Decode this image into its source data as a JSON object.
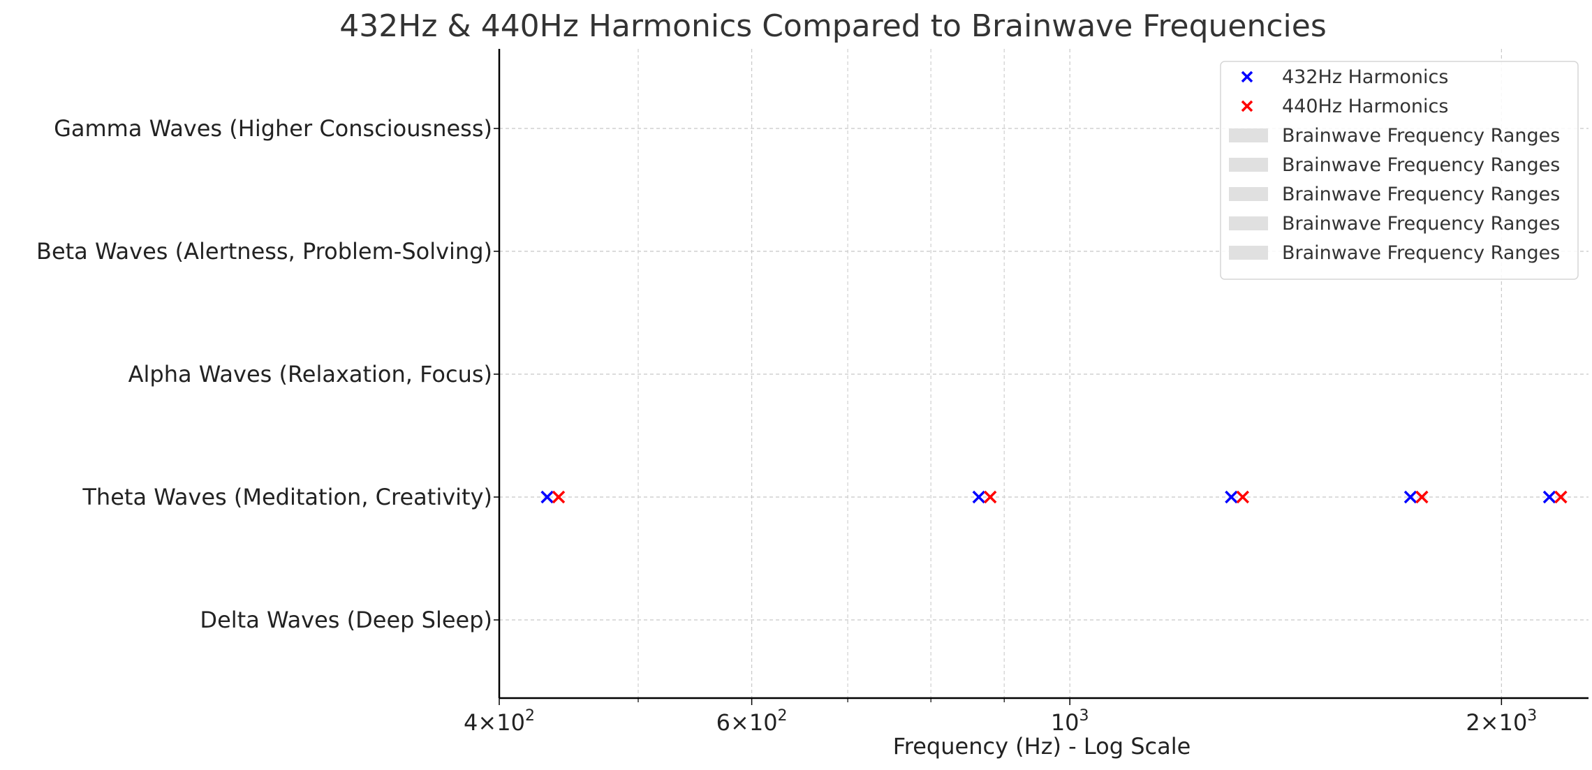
{
  "chart_data": {
    "type": "scatter",
    "title": "432Hz & 440Hz Harmonics Compared to Brainwave Frequencies",
    "xlabel": "Frequency (Hz) - Log Scale",
    "ylabel": "",
    "x_scale": "log",
    "xlim": [
      400,
      2300
    ],
    "x_ticks": [
      {
        "value": 400,
        "base": "4",
        "exp": "2"
      },
      {
        "value": 600,
        "base": "6",
        "exp": "2"
      },
      {
        "value": 1000,
        "base": "",
        "exp": "3"
      },
      {
        "value": 2000,
        "base": "2",
        "exp": "3"
      }
    ],
    "x_tick_mult": "×",
    "x_tick_ten": "10",
    "minor_ticks": [
      500,
      700,
      800,
      900
    ],
    "categories": [
      "Delta Waves (Deep Sleep)",
      "Theta Waves (Meditation, Creativity)",
      "Alpha Waves (Relaxation, Focus)",
      "Beta Waves (Alertness, Problem-Solving)",
      "Gamma Waves (Higher Consciousness)"
    ],
    "series": [
      {
        "name": "432Hz Harmonics",
        "marker": "x",
        "color": "#0000ff",
        "x": [
          432,
          864,
          1296,
          1728,
          2160
        ],
        "y": [
          "Theta Waves (Meditation, Creativity)",
          "Theta Waves (Meditation, Creativity)",
          "Theta Waves (Meditation, Creativity)",
          "Theta Waves (Meditation, Creativity)",
          "Theta Waves (Meditation, Creativity)"
        ]
      },
      {
        "name": "440Hz Harmonics",
        "marker": "x",
        "color": "#ff0000",
        "x": [
          440,
          880,
          1320,
          1760,
          2200
        ],
        "y": [
          "Theta Waves (Meditation, Creativity)",
          "Theta Waves (Meditation, Creativity)",
          "Theta Waves (Meditation, Creativity)",
          "Theta Waves (Meditation, Creativity)",
          "Theta Waves (Meditation, Creativity)"
        ]
      }
    ],
    "legend": {
      "placement": "top-right",
      "entries": [
        {
          "label": "432Hz Harmonics",
          "kind": "marker",
          "color": "#0000ff"
        },
        {
          "label": "440Hz Harmonics",
          "kind": "marker",
          "color": "#ff0000"
        },
        {
          "label": "Brainwave Frequency Ranges",
          "kind": "patch",
          "color": "#e0e0e0"
        },
        {
          "label": "Brainwave Frequency Ranges",
          "kind": "patch",
          "color": "#e0e0e0"
        },
        {
          "label": "Brainwave Frequency Ranges",
          "kind": "patch",
          "color": "#e0e0e0"
        },
        {
          "label": "Brainwave Frequency Ranges",
          "kind": "patch",
          "color": "#e0e0e0"
        },
        {
          "label": "Brainwave Frequency Ranges",
          "kind": "patch",
          "color": "#e0e0e0"
        }
      ]
    },
    "grid": true
  }
}
